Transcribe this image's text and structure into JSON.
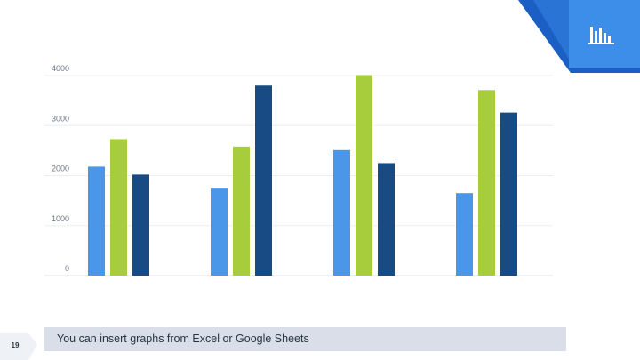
{
  "slide": {
    "number": "19",
    "caption": "You can insert graphs from Excel or Google Sheets",
    "icon": "bar-chart-icon"
  },
  "colors": {
    "series_1": "#4a97e9",
    "series_2": "#a8cd3c",
    "series_3": "#184b83",
    "corner_dark": "#1c5fc4",
    "corner_light": "#3d8ee8",
    "caption_bg": "#d9dee8",
    "grid": "#eceff2"
  },
  "chart_data": {
    "type": "bar",
    "categories": [
      "",
      "",
      "",
      ""
    ],
    "series": [
      {
        "values": [
          2180,
          1740,
          2510,
          1650
        ]
      },
      {
        "values": [
          2730,
          2580,
          4010,
          3710
        ]
      },
      {
        "values": [
          2020,
          3800,
          2250,
          3260
        ]
      }
    ],
    "y_ticks": [
      "0",
      "1000",
      "2000",
      "3000",
      "4000"
    ],
    "ylim": [
      0,
      4000
    ],
    "grid": true,
    "legend": "none"
  }
}
